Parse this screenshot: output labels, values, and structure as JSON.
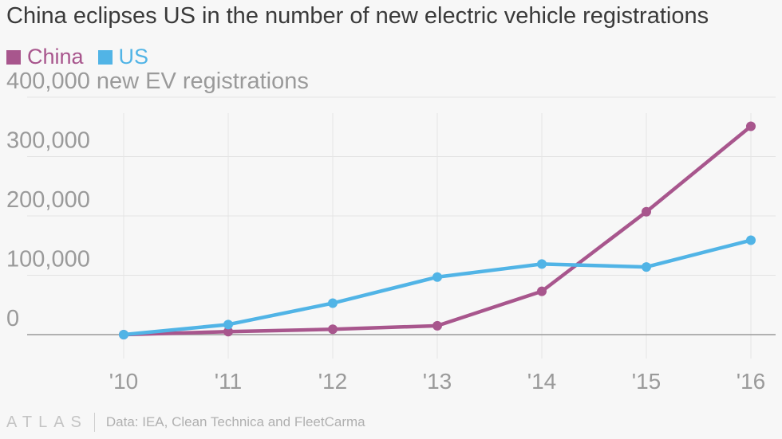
{
  "title": "China eclipses US in the number of new electric vehicle registrations",
  "colors": {
    "china": "#a8568d",
    "us": "#51b4e6",
    "axis": "#9a9a9a",
    "grid": "#e4e4e4"
  },
  "chart_data": {
    "type": "line",
    "title": "China eclipses US in the number of new electric vehicle registrations",
    "categories": [
      "'10",
      "'11",
      "'12",
      "'13",
      "'14",
      "'15",
      "'16"
    ],
    "series": [
      {
        "name": "China",
        "values": [
          0,
          5000,
          9000,
          15000,
          73000,
          207000,
          351000
        ]
      },
      {
        "name": "US",
        "values": [
          0,
          17000,
          53000,
          97000,
          119000,
          114000,
          159000
        ]
      }
    ],
    "ylim": [
      0,
      400000
    ],
    "yticks": [
      0,
      100000,
      200000,
      300000,
      400000
    ],
    "ytick_labels": [
      "0",
      "100,000",
      "200,000",
      "300,000",
      "400,000 new EV registrations"
    ],
    "xlabel": "",
    "ylabel": "new EV registrations",
    "legend_position": "top-left",
    "grid": true
  },
  "footer": {
    "logo": "ATLAS",
    "source": "Data: IEA, Clean Technica and FleetCarma"
  }
}
